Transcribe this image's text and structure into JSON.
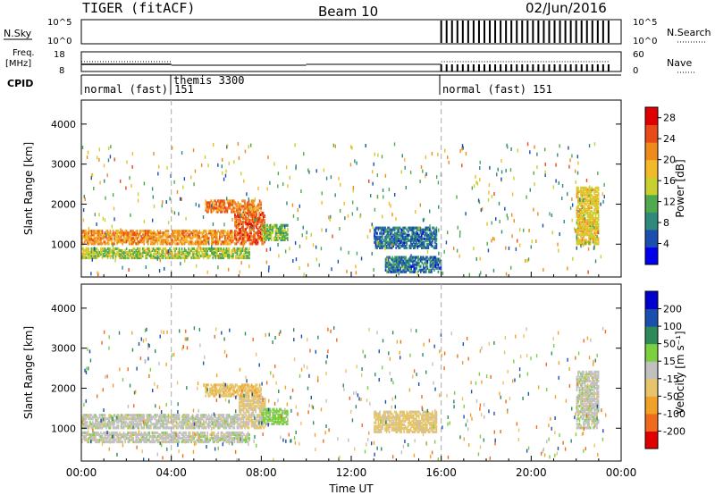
{
  "header": {
    "station": "TIGER (fitACF)",
    "beam": "Beam 10",
    "date": "02/Jun/2016"
  },
  "nsky_panel": {
    "left_label": "N.Sky",
    "left_ticks": [
      "10^5",
      "10^0"
    ],
    "right_ticks": [
      "10^5",
      "10^0"
    ],
    "right_label": "N.Search"
  },
  "freq_panel": {
    "left_label_1": "Freq.",
    "left_label_2": "[MHz]",
    "left_ticks": [
      "18",
      "8"
    ],
    "right_ticks": [
      "60",
      "0"
    ],
    "right_label": "Nave"
  },
  "cpid_panel": {
    "label": "CPID",
    "segments": [
      {
        "label": "normal (fast) 151",
        "start_h": 0,
        "end_h": 4
      },
      {
        "label": "themis 3300",
        "start_h": 4,
        "end_h": 16
      },
      {
        "label": "normal (fast) 151",
        "start_h": 16,
        "end_h": 24
      }
    ]
  },
  "chart_data": [
    {
      "type": "heatmap",
      "title": "",
      "xlabel": "",
      "ylabel": "Slant Range [km]",
      "x_ticks": [
        "00:00",
        "04:00",
        "08:00",
        "12:00",
        "16:00",
        "20:00",
        "00:00"
      ],
      "xlim": [
        0,
        24
      ],
      "y_ticks": [
        "1000",
        "2000",
        "3000",
        "4000"
      ],
      "ylim": [
        180,
        4600
      ],
      "colorbar": {
        "label": "Power [dB]",
        "ticks": [
          "4",
          "8",
          "12",
          "16",
          "20",
          "24",
          "28"
        ],
        "range": [
          0,
          30
        ],
        "colors": [
          "#0000ee",
          "#1a4fb0",
          "#2f8a7c",
          "#4faa4f",
          "#c8d030",
          "#f2b928",
          "#ef8a1c",
          "#e84a1a",
          "#e00000"
        ]
      },
      "regions": [
        {
          "t_start": 0.0,
          "t_end": 6.8,
          "range_low": 1000,
          "range_high": 1350,
          "value": 21
        },
        {
          "t_start": 6.8,
          "t_end": 8.2,
          "range_low": 1000,
          "range_high": 1800,
          "value": 24
        },
        {
          "t_start": 5.5,
          "t_end": 8.0,
          "range_low": 1800,
          "range_high": 2100,
          "value": 22
        },
        {
          "t_start": 0.0,
          "t_end": 7.5,
          "range_low": 650,
          "range_high": 900,
          "value": 14
        },
        {
          "t_start": 8.0,
          "t_end": 9.2,
          "range_low": 1100,
          "range_high": 1500,
          "value": 13
        },
        {
          "t_start": 13.0,
          "t_end": 15.8,
          "range_low": 900,
          "range_high": 1400,
          "value": 7
        },
        {
          "t_start": 13.5,
          "t_end": 16.0,
          "range_low": 300,
          "range_high": 700,
          "value": 7
        },
        {
          "t_start": 22.0,
          "t_end": 23.0,
          "range_low": 1000,
          "range_high": 2400,
          "value": 17
        }
      ]
    },
    {
      "type": "heatmap",
      "title": "",
      "xlabel": "Time UT",
      "ylabel": "Slant Range [km]",
      "x_ticks": [
        "00:00",
        "04:00",
        "08:00",
        "12:00",
        "16:00",
        "20:00",
        "00:00"
      ],
      "xlim": [
        0,
        24
      ],
      "y_ticks": [
        "1000",
        "2000",
        "3000",
        "4000"
      ],
      "ylim": [
        180,
        4600
      ],
      "colorbar": {
        "label": "Velocity [m s⁻¹]",
        "ticks": [
          "-200",
          "-100",
          "-50",
          "-15",
          "15",
          "50",
          "100",
          "200"
        ],
        "colors": [
          "#e00000",
          "#ef6b1c",
          "#f2a128",
          "#e6c46a",
          "#c0c0c0",
          "#7ccf3f",
          "#2f8a5a",
          "#1a4fb0",
          "#0000cc"
        ]
      },
      "regions": [
        {
          "t_start": 0.0,
          "t_end": 7.0,
          "range_low": 1000,
          "range_high": 1350,
          "value": 0
        },
        {
          "t_start": 7.0,
          "t_end": 8.2,
          "range_low": 1000,
          "range_high": 1800,
          "value": -20
        },
        {
          "t_start": 5.5,
          "t_end": 8.0,
          "range_low": 1800,
          "range_high": 2100,
          "value": -40
        },
        {
          "t_start": 0.0,
          "t_end": 7.5,
          "range_low": 650,
          "range_high": 900,
          "value": 0
        },
        {
          "t_start": 8.0,
          "t_end": 9.2,
          "range_low": 1100,
          "range_high": 1500,
          "value": 30
        },
        {
          "t_start": 13.0,
          "t_end": 15.8,
          "range_low": 900,
          "range_high": 1400,
          "value": -30
        },
        {
          "t_start": 22.0,
          "t_end": 23.0,
          "range_low": 1000,
          "range_high": 2400,
          "value": 0
        }
      ]
    }
  ]
}
